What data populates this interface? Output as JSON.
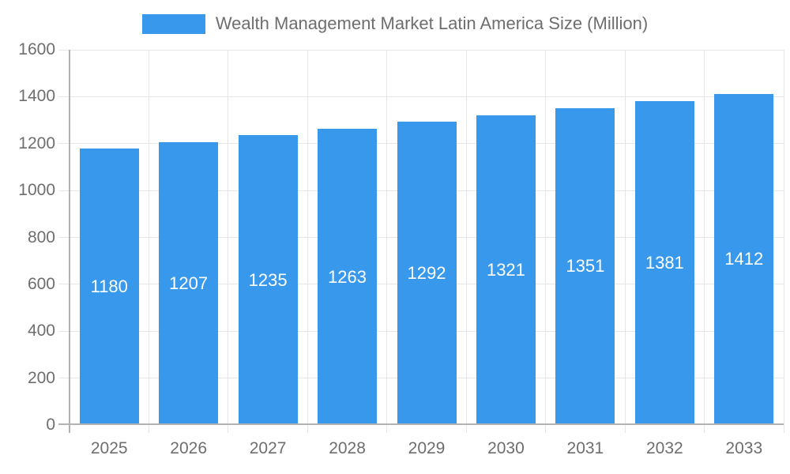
{
  "legend": {
    "label": "Wealth Management Market Latin America Size (Million)"
  },
  "chart_data": {
    "type": "bar",
    "title": "Wealth Management Market Latin America Size (Million)",
    "categories": [
      "2025",
      "2026",
      "2027",
      "2028",
      "2029",
      "2030",
      "2031",
      "2032",
      "2033"
    ],
    "values": [
      1180,
      1207,
      1235,
      1263,
      1292,
      1321,
      1351,
      1381,
      1412
    ],
    "xlabel": "",
    "ylabel": "",
    "ylim": [
      0,
      1600
    ],
    "ytick_step": 200,
    "grid": true,
    "legend_position": "top",
    "value_labels_inside_bars": true,
    "colors": {
      "bar": "#3899ec",
      "bar_value_label": "#ffffff",
      "axis_text": "#6e6e6e",
      "gridline": "#e6e6e6",
      "axis_line": "#b3b3b3",
      "background": "#ffffff"
    }
  }
}
